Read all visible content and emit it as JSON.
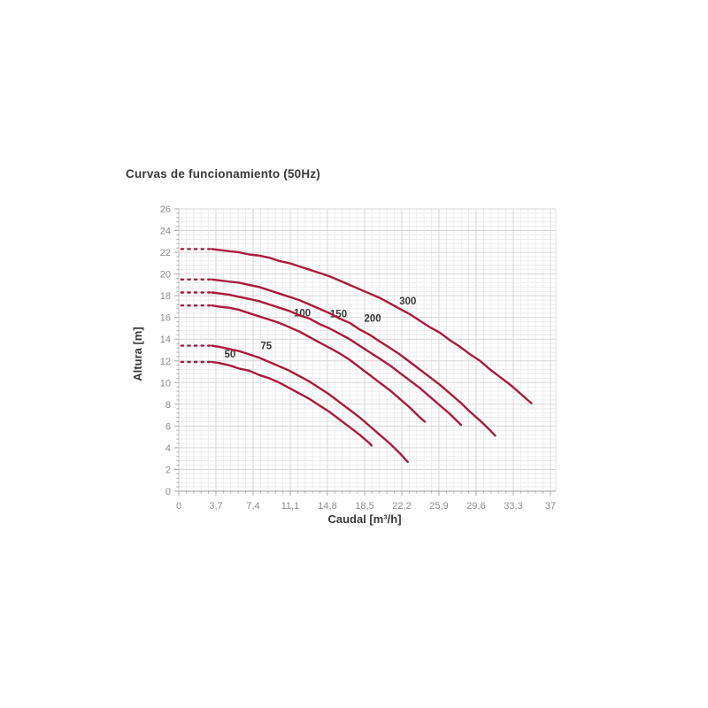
{
  "title": "Curvas de funcionamiento (50Hz)",
  "chart_data": {
    "type": "line",
    "title": "Curvas de funcionamiento (50Hz)",
    "xlabel": "Caudal [m³/h]",
    "ylabel": "Altura [m]",
    "xlim": [
      0,
      37.5
    ],
    "ylim": [
      0,
      26
    ],
    "grid": "major+minor",
    "legend": "inline-curve-labels",
    "x_minor_step": 0.74,
    "y_minor_step": 0.4,
    "x_ticks": {
      "values": [
        0,
        3.7,
        7.4,
        11.1,
        14.8,
        18.5,
        22.2,
        25.9,
        29.6,
        33.3,
        37
      ],
      "labels": [
        "0",
        "3,7",
        "7,4",
        "11,1",
        "14,8",
        "18,5",
        "22,2",
        "25,9",
        "29,6",
        "33,3",
        "37"
      ]
    },
    "y_ticks": {
      "values": [
        0,
        2,
        4,
        6,
        8,
        10,
        12,
        14,
        16,
        18,
        20,
        22,
        24,
        26
      ],
      "labels": [
        "0",
        "2",
        "4",
        "6",
        "8",
        "10",
        "12",
        "14",
        "16",
        "18",
        "20",
        "22",
        "24",
        "26"
      ]
    },
    "colors": {
      "curve": "#ab1a3c",
      "grid_major": "#d7d7d7",
      "grid_minor": "#ececec",
      "axis_bottom": "#9e9e9e",
      "axis_left": "#c9c9c9",
      "plot_border": "#e0e0e0",
      "tick": "#a9a9a9",
      "tick_text": "#8c8c8c",
      "curve_label_text": "#3a3a3a",
      "axis_title_text": "#3a3a3a"
    },
    "series": [
      {
        "name": "50",
        "label": "50",
        "label_at": [
          5.1,
          12.3
        ],
        "dotted": {
          "from": 0.25,
          "to": 3.1
        },
        "points": [
          [
            3.3,
            11.9
          ],
          [
            4,
            11.8
          ],
          [
            5,
            11.6
          ],
          [
            6,
            11.3
          ],
          [
            7,
            11.1
          ],
          [
            8,
            10.7
          ],
          [
            9,
            10.4
          ],
          [
            10,
            10.0
          ],
          [
            11,
            9.5
          ],
          [
            12,
            9.0
          ],
          [
            13,
            8.5
          ],
          [
            14,
            7.9
          ],
          [
            15,
            7.3
          ],
          [
            16,
            6.6
          ],
          [
            17,
            5.9
          ],
          [
            18,
            5.2
          ],
          [
            19,
            4.4
          ],
          [
            19.2,
            4.2
          ]
        ]
      },
      {
        "name": "75",
        "label": "75",
        "label_at": [
          8.7,
          13.1
        ],
        "dotted": {
          "from": 0.25,
          "to": 3.1
        },
        "points": [
          [
            3.3,
            13.4
          ],
          [
            4,
            13.3
          ],
          [
            5,
            13.1
          ],
          [
            6,
            12.9
          ],
          [
            7,
            12.6
          ],
          [
            8,
            12.3
          ],
          [
            9,
            11.9
          ],
          [
            10,
            11.5
          ],
          [
            11,
            11.1
          ],
          [
            12,
            10.6
          ],
          [
            13,
            10.1
          ],
          [
            14,
            9.5
          ],
          [
            15,
            8.9
          ],
          [
            16,
            8.2
          ],
          [
            17,
            7.5
          ],
          [
            18,
            6.8
          ],
          [
            19,
            6.0
          ],
          [
            20,
            5.2
          ],
          [
            21,
            4.4
          ],
          [
            22,
            3.5
          ],
          [
            22.8,
            2.7
          ]
        ]
      },
      {
        "name": "100",
        "label": "100",
        "label_at": [
          12.3,
          16.1
        ],
        "dotted": {
          "from": 0.25,
          "to": 3.1
        },
        "points": [
          [
            3.3,
            17.1
          ],
          [
            4,
            17.0
          ],
          [
            5,
            16.9
          ],
          [
            6,
            16.7
          ],
          [
            7,
            16.4
          ],
          [
            8,
            16.1
          ],
          [
            9,
            15.8
          ],
          [
            10,
            15.5
          ],
          [
            11,
            15.1
          ],
          [
            12,
            14.7
          ],
          [
            13,
            14.2
          ],
          [
            14,
            13.7
          ],
          [
            15,
            13.2
          ],
          [
            16,
            12.7
          ],
          [
            17,
            12.1
          ],
          [
            18,
            11.4
          ],
          [
            19,
            10.7
          ],
          [
            20,
            10.0
          ],
          [
            21,
            9.3
          ],
          [
            22,
            8.5
          ],
          [
            23,
            7.7
          ],
          [
            24,
            6.8
          ],
          [
            24.5,
            6.4
          ]
        ]
      },
      {
        "name": "150",
        "label": "150",
        "label_at": [
          15.9,
          16.0
        ],
        "dotted": {
          "from": 0.25,
          "to": 3.1
        },
        "points": [
          [
            3.3,
            18.3
          ],
          [
            5,
            18.1
          ],
          [
            6,
            17.9
          ],
          [
            7,
            17.7
          ],
          [
            8,
            17.5
          ],
          [
            9,
            17.2
          ],
          [
            10,
            16.9
          ],
          [
            11,
            16.6
          ],
          [
            12,
            16.2
          ],
          [
            13,
            15.9
          ],
          [
            14,
            15.4
          ],
          [
            15,
            15.0
          ],
          [
            16,
            14.5
          ],
          [
            17,
            14.0
          ],
          [
            18,
            13.4
          ],
          [
            19,
            12.8
          ],
          [
            20,
            12.2
          ],
          [
            21,
            11.6
          ],
          [
            22,
            10.9
          ],
          [
            23,
            10.2
          ],
          [
            24,
            9.5
          ],
          [
            25,
            8.7
          ],
          [
            26,
            7.9
          ],
          [
            27,
            7.1
          ],
          [
            28.1,
            6.1
          ]
        ]
      },
      {
        "name": "200",
        "label": "200",
        "label_at": [
          19.3,
          15.6
        ],
        "dotted": {
          "from": 0.25,
          "to": 3.1
        },
        "points": [
          [
            3.3,
            19.5
          ],
          [
            5,
            19.3
          ],
          [
            6,
            19.2
          ],
          [
            7,
            19.0
          ],
          [
            8,
            18.8
          ],
          [
            9,
            18.5
          ],
          [
            10,
            18.2
          ],
          [
            11,
            17.9
          ],
          [
            12,
            17.6
          ],
          [
            13,
            17.2
          ],
          [
            14,
            16.8
          ],
          [
            15,
            16.4
          ],
          [
            16,
            15.9
          ],
          [
            17,
            15.5
          ],
          [
            18,
            14.9
          ],
          [
            19,
            14.4
          ],
          [
            20,
            13.8
          ],
          [
            21,
            13.2
          ],
          [
            22,
            12.6
          ],
          [
            23,
            11.9
          ],
          [
            24,
            11.2
          ],
          [
            25,
            10.5
          ],
          [
            26,
            9.8
          ],
          [
            27,
            9.0
          ],
          [
            28,
            8.2
          ],
          [
            29,
            7.3
          ],
          [
            30,
            6.5
          ],
          [
            31,
            5.6
          ],
          [
            31.5,
            5.1
          ]
        ]
      },
      {
        "name": "300",
        "label": "300",
        "label_at": [
          22.8,
          17.2
        ],
        "dotted": {
          "from": 0.25,
          "to": 3.1
        },
        "points": [
          [
            3.3,
            22.3
          ],
          [
            5,
            22.1
          ],
          [
            6,
            22.0
          ],
          [
            7,
            21.8
          ],
          [
            8,
            21.7
          ],
          [
            9,
            21.5
          ],
          [
            10,
            21.2
          ],
          [
            11,
            21.0
          ],
          [
            12,
            20.7
          ],
          [
            13,
            20.4
          ],
          [
            14,
            20.1
          ],
          [
            15,
            19.8
          ],
          [
            16,
            19.4
          ],
          [
            17,
            19.0
          ],
          [
            18,
            18.6
          ],
          [
            19,
            18.2
          ],
          [
            20,
            17.8
          ],
          [
            21,
            17.3
          ],
          [
            22,
            16.8
          ],
          [
            23,
            16.3
          ],
          [
            24,
            15.7
          ],
          [
            25,
            15.1
          ],
          [
            26,
            14.6
          ],
          [
            27,
            13.9
          ],
          [
            28,
            13.3
          ],
          [
            29,
            12.6
          ],
          [
            30,
            12.0
          ],
          [
            31,
            11.2
          ],
          [
            32,
            10.5
          ],
          [
            33,
            9.8
          ],
          [
            34,
            9.0
          ],
          [
            35.1,
            8.1
          ]
        ]
      }
    ]
  }
}
